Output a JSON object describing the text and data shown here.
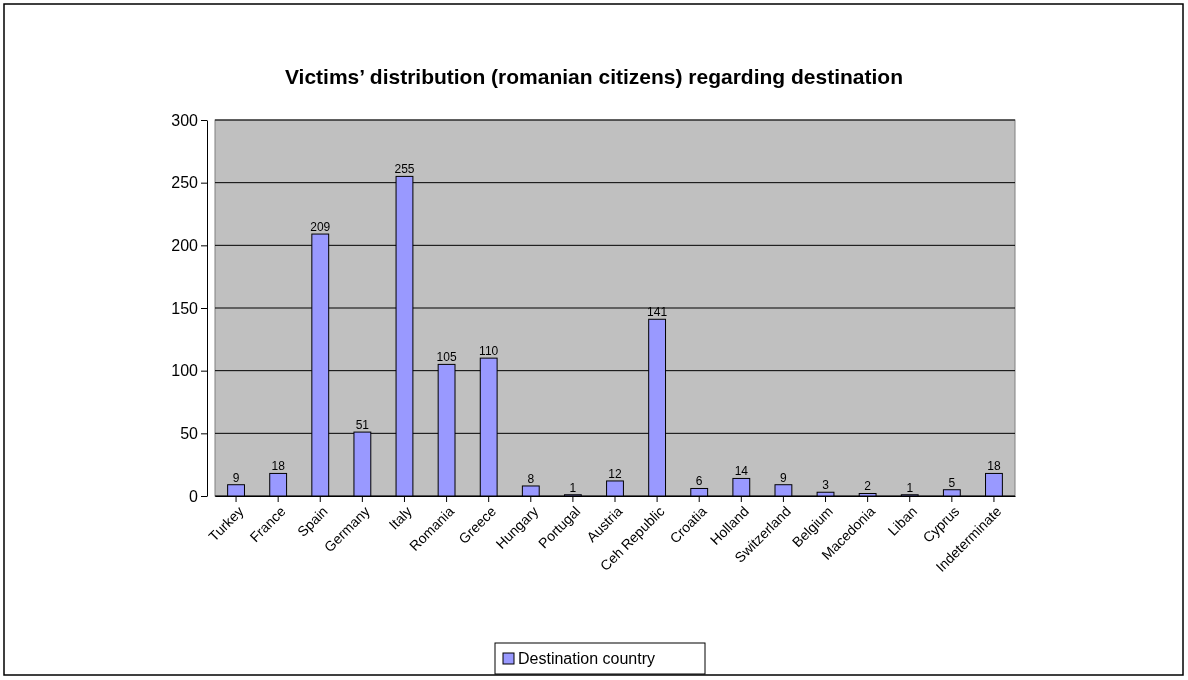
{
  "chart_data": {
    "type": "bar",
    "title": "Victims’ distribution (romanian citizens) regarding destination",
    "categories": [
      "Turkey",
      "France",
      "Spain",
      "Germany",
      "Italy",
      "Romania",
      "Greece",
      "Hungary",
      "Portugal",
      "Austria",
      "Ceh Republic",
      "Croatia",
      "Holland",
      "Switzerland",
      "Belgium",
      "Macedonia",
      "Liban",
      "Cyprus",
      "Indeterminate"
    ],
    "series": [
      {
        "name": "Destination country",
        "color": "#9999ff",
        "values": [
          9,
          18,
          209,
          51,
          255,
          105,
          110,
          8,
          1,
          12,
          141,
          6,
          14,
          9,
          3,
          2,
          1,
          5,
          18
        ]
      }
    ],
    "ylim": [
      0,
      300
    ],
    "yticks": [
      0,
      50,
      100,
      150,
      200,
      250,
      300
    ],
    "grid": "y",
    "legend": "bottom",
    "data_labels": true
  }
}
